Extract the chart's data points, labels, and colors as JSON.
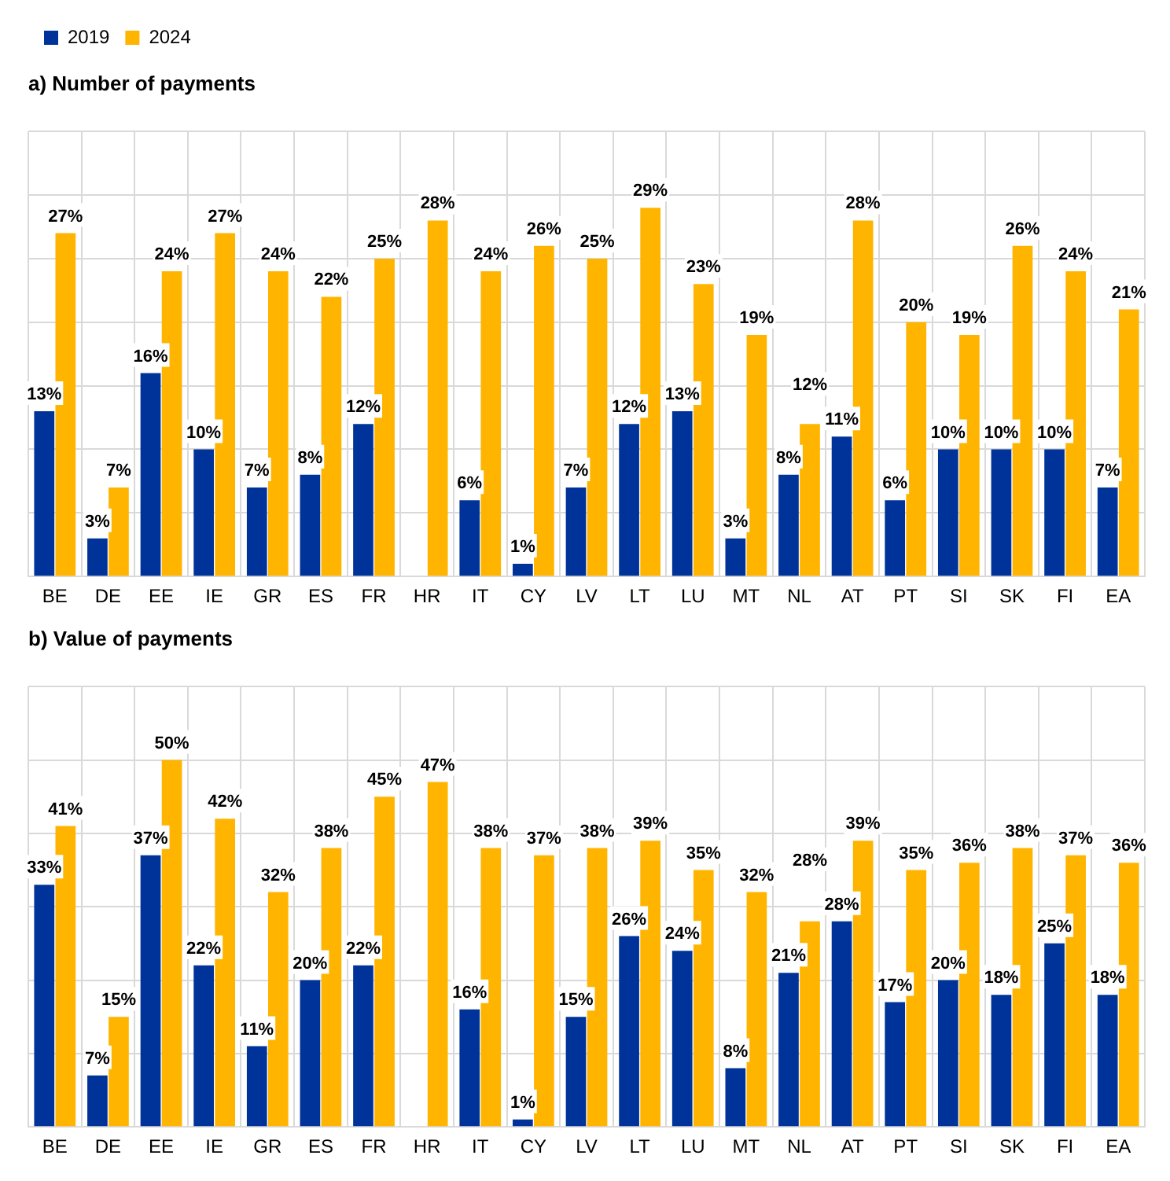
{
  "chart_data": [
    {
      "type": "bar",
      "title": "a) Number of payments",
      "legend": "top left",
      "grid": true,
      "tick_labels": "x",
      "categories": [
        "BE",
        "DE",
        "EE",
        "IE",
        "GR",
        "ES",
        "FR",
        "HR",
        "IT",
        "CY",
        "LV",
        "LT",
        "LU",
        "MT",
        "NL",
        "AT",
        "PT",
        "SI",
        "SK",
        "FI",
        "EA"
      ],
      "series": [
        {
          "name": "2019",
          "color": "#003399",
          "values": [
            13,
            3,
            16,
            10,
            7,
            8,
            12,
            null,
            6,
            1,
            7,
            12,
            13,
            3,
            8,
            11,
            6,
            10,
            10,
            10,
            7
          ],
          "value_labels": [
            "13%",
            "3%",
            "16%",
            "10%",
            "7%",
            "8%",
            "12%",
            null,
            "6%",
            "1%",
            "7%",
            "12%",
            "13%",
            "3%",
            "8%",
            "11%",
            "6%",
            "10%",
            "10%",
            "10%",
            "7%"
          ]
        },
        {
          "name": "2024",
          "color": "#ffb400",
          "values": [
            27,
            7,
            24,
            27,
            24,
            22,
            25,
            28,
            24,
            26,
            25,
            29,
            23,
            19,
            12,
            28,
            20,
            19,
            26,
            24,
            21
          ],
          "value_labels": [
            "27%",
            "7%",
            "24%",
            "27%",
            "24%",
            "22%",
            "25%",
            "28%",
            "24%",
            "26%",
            "25%",
            "29%",
            "23%",
            "19%",
            "12%",
            "28%",
            "20%",
            "19%",
            "26%",
            "24%",
            "21%"
          ]
        }
      ]
    },
    {
      "type": "bar",
      "title": "b) Value of payments",
      "grid": true,
      "tick_labels": "x",
      "categories": [
        "BE",
        "DE",
        "EE",
        "IE",
        "GR",
        "ES",
        "FR",
        "HR",
        "IT",
        "CY",
        "LV",
        "LT",
        "LU",
        "MT",
        "NL",
        "AT",
        "PT",
        "SI",
        "SK",
        "FI",
        "EA"
      ],
      "series": [
        {
          "name": "2019",
          "color": "#003399",
          "values": [
            33,
            7,
            37,
            22,
            11,
            20,
            22,
            null,
            16,
            1,
            15,
            26,
            24,
            8,
            21,
            28,
            17,
            20,
            18,
            25,
            18
          ],
          "value_labels": [
            "33%",
            "7%",
            "37%",
            "22%",
            "11%",
            "20%",
            "22%",
            null,
            "16%",
            "1%",
            "15%",
            "26%",
            "24%",
            "8%",
            "21%",
            "28%",
            "17%",
            "20%",
            "18%",
            "25%",
            "18%"
          ]
        },
        {
          "name": "2024",
          "color": "#ffb400",
          "values": [
            41,
            15,
            50,
            42,
            32,
            38,
            45,
            47,
            38,
            37,
            38,
            39,
            35,
            32,
            28,
            39,
            35,
            36,
            38,
            37,
            36
          ],
          "value_labels": [
            "41%",
            "15%",
            "50%",
            "42%",
            "32%",
            "38%",
            "45%",
            "47%",
            "38%",
            "37%",
            "38%",
            "39%",
            "35%",
            "32%",
            "28%",
            "39%",
            "35%",
            "36%",
            "38%",
            "37%",
            "36%"
          ]
        }
      ]
    }
  ]
}
